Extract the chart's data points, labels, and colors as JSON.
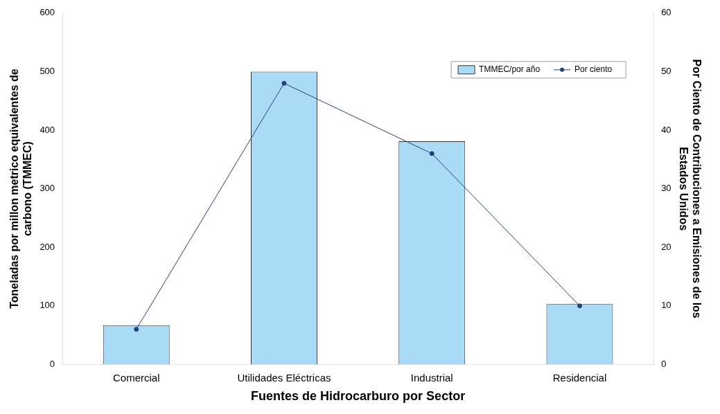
{
  "chart_data": {
    "type": "bar",
    "xlabel": "Fuentes de Hidrocarburo por Sector",
    "ylabel": "Toneladas por millon metrico equivalentes de carbono (TMMEC)",
    "y2label": "Por Ciento de Contribuciones a Emisiones de los Estados Unidos",
    "categories": [
      "Comercial",
      "Utilidades Eléctricas",
      "Industrial",
      "Residencial"
    ],
    "series": [
      {
        "name": "TMMEC/por año",
        "color": "#a9dbf7",
        "values": [
          67,
          500,
          381,
          103
        ]
      },
      {
        "name": "Por ciento",
        "type": "line",
        "axis": "y2",
        "color": "#24407a",
        "marker": "circle",
        "values": [
          6,
          48,
          36,
          10
        ]
      }
    ],
    "ylim": [
      0,
      600
    ],
    "yticks": [
      0,
      100,
      200,
      300,
      400,
      500,
      600
    ],
    "y2lim": [
      0,
      60
    ],
    "y2ticks": [
      0,
      10,
      20,
      30,
      40,
      50,
      60
    ],
    "grid": false,
    "legend": "top right"
  }
}
